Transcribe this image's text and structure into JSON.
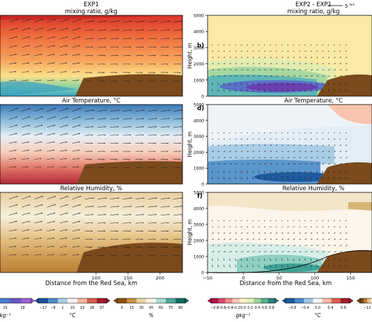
{
  "chart_data": [
    {
      "type": "contour",
      "panel": "a",
      "title": "EXP1",
      "subtitle": "mixing ratio, g/kg",
      "xlabel": "",
      "x_ticks": [],
      "y_ticks": [],
      "xlim": [
        -50,
        235
      ],
      "colormap": "spectral-reverse"
    },
    {
      "type": "contour",
      "panel": "b",
      "panel_label": "b)",
      "title": "EXP2 - EXP1",
      "subtitle": "mixing ratio, g/kg",
      "ylabel": "Height, m",
      "y_ticks": [
        "0",
        "1000",
        "2000",
        "3000",
        "4000",
        "5000"
      ],
      "ylim": [
        0,
        5000
      ],
      "x_ticks": [],
      "xlim": [
        -50,
        180
      ],
      "colormap": "diverging-purple-green-yellow"
    },
    {
      "type": "contour",
      "panel": "c",
      "title": "Air Temperature, °C",
      "xlim": [
        -50,
        235
      ],
      "colormap": "blue-red"
    },
    {
      "type": "contour",
      "panel": "d",
      "panel_label": "d)",
      "title": "Air Temperature, °C",
      "ylabel": "Height, m",
      "y_ticks": [
        "0",
        "1000",
        "2000",
        "3000",
        "4000",
        "5000"
      ],
      "ylim": [
        0,
        5000
      ],
      "xlim": [
        -50,
        180
      ],
      "colormap": "blue-white-red"
    },
    {
      "type": "contour",
      "panel": "e",
      "title": "Relative Humidity, %",
      "xlabel": "Distance from the Red Sea, km",
      "x_ticks": [
        "100",
        "150",
        "200"
      ],
      "xlim": [
        -50,
        235
      ],
      "colormap": "brown-white-teal"
    },
    {
      "type": "contour",
      "panel": "f",
      "panel_label": "f)",
      "title": "Relative Humidity, %",
      "ylabel": "Height, m",
      "xlabel": "Distance from the Red Sea, km",
      "y_ticks": [
        "0",
        "1000",
        "2000",
        "3000",
        "4000",
        "5000"
      ],
      "ylim": [
        0,
        5000
      ],
      "x_ticks": [
        "−50",
        "0",
        "50",
        "100",
        "150"
      ],
      "xlim": [
        -50,
        180
      ],
      "colormap": "brown-white-teal"
    }
  ],
  "figure": {
    "vector_key": "5",
    "vector_key_unit": "m/s",
    "terrain_color": "#7a4a1c"
  },
  "colorbars": [
    {
      "ticks": [
        "12",
        "15",
        "18"
      ],
      "unit": "kg⁻¹",
      "colors": [
        "#8fd4c0",
        "#5cb4d6",
        "#4a7bd0",
        "#6a55c4",
        "#9b5fd6"
      ]
    },
    {
      "ticks": [
        "−17",
        "−8",
        "1",
        "10",
        "19",
        "28",
        "37"
      ],
      "unit": "°C",
      "colors": [
        "#1f4d9a",
        "#4f8bc9",
        "#a9cde6",
        "#f2f2f2",
        "#f3b6a0",
        "#d75b4f",
        "#9d1b2e"
      ]
    },
    {
      "ticks": [
        "0",
        "15",
        "30",
        "45",
        "60",
        "75",
        "90"
      ],
      "unit": "%",
      "colors": [
        "#8b4f14",
        "#c98f45",
        "#ead3a4",
        "#f5f1e6",
        "#a9dcd2",
        "#4aa89a",
        "#0f6b5e"
      ]
    },
    {
      "ticks": [
        "−0.8",
        "−0.6",
        "−0.4",
        "−0.2",
        "0.0",
        "0.2",
        "0.4",
        "0.6",
        "0.8"
      ],
      "unit": "gkg⁻¹",
      "colors": [
        "#b1124e",
        "#d94a6b",
        "#ee8b8f",
        "#f6c7bb",
        "#fbeecb",
        "#e3efb4",
        "#9fd29e",
        "#57b08d",
        "#2e7f7a"
      ]
    },
    {
      "ticks": [
        "−0.8",
        "−0.4",
        "0.0",
        "0.4",
        "0.8"
      ],
      "unit": "°C",
      "colors": [
        "#1d5a9e",
        "#4a8dc8",
        "#9cc5e3",
        "#f4f4f4",
        "#f4b9a3",
        "#dc5e52",
        "#a21c2d"
      ]
    },
    {
      "ticks": [
        "−12"
      ],
      "unit": "",
      "colors": [
        "#7a4516",
        "#b87a35",
        "#e1c08a",
        "#f4eedf"
      ]
    }
  ]
}
